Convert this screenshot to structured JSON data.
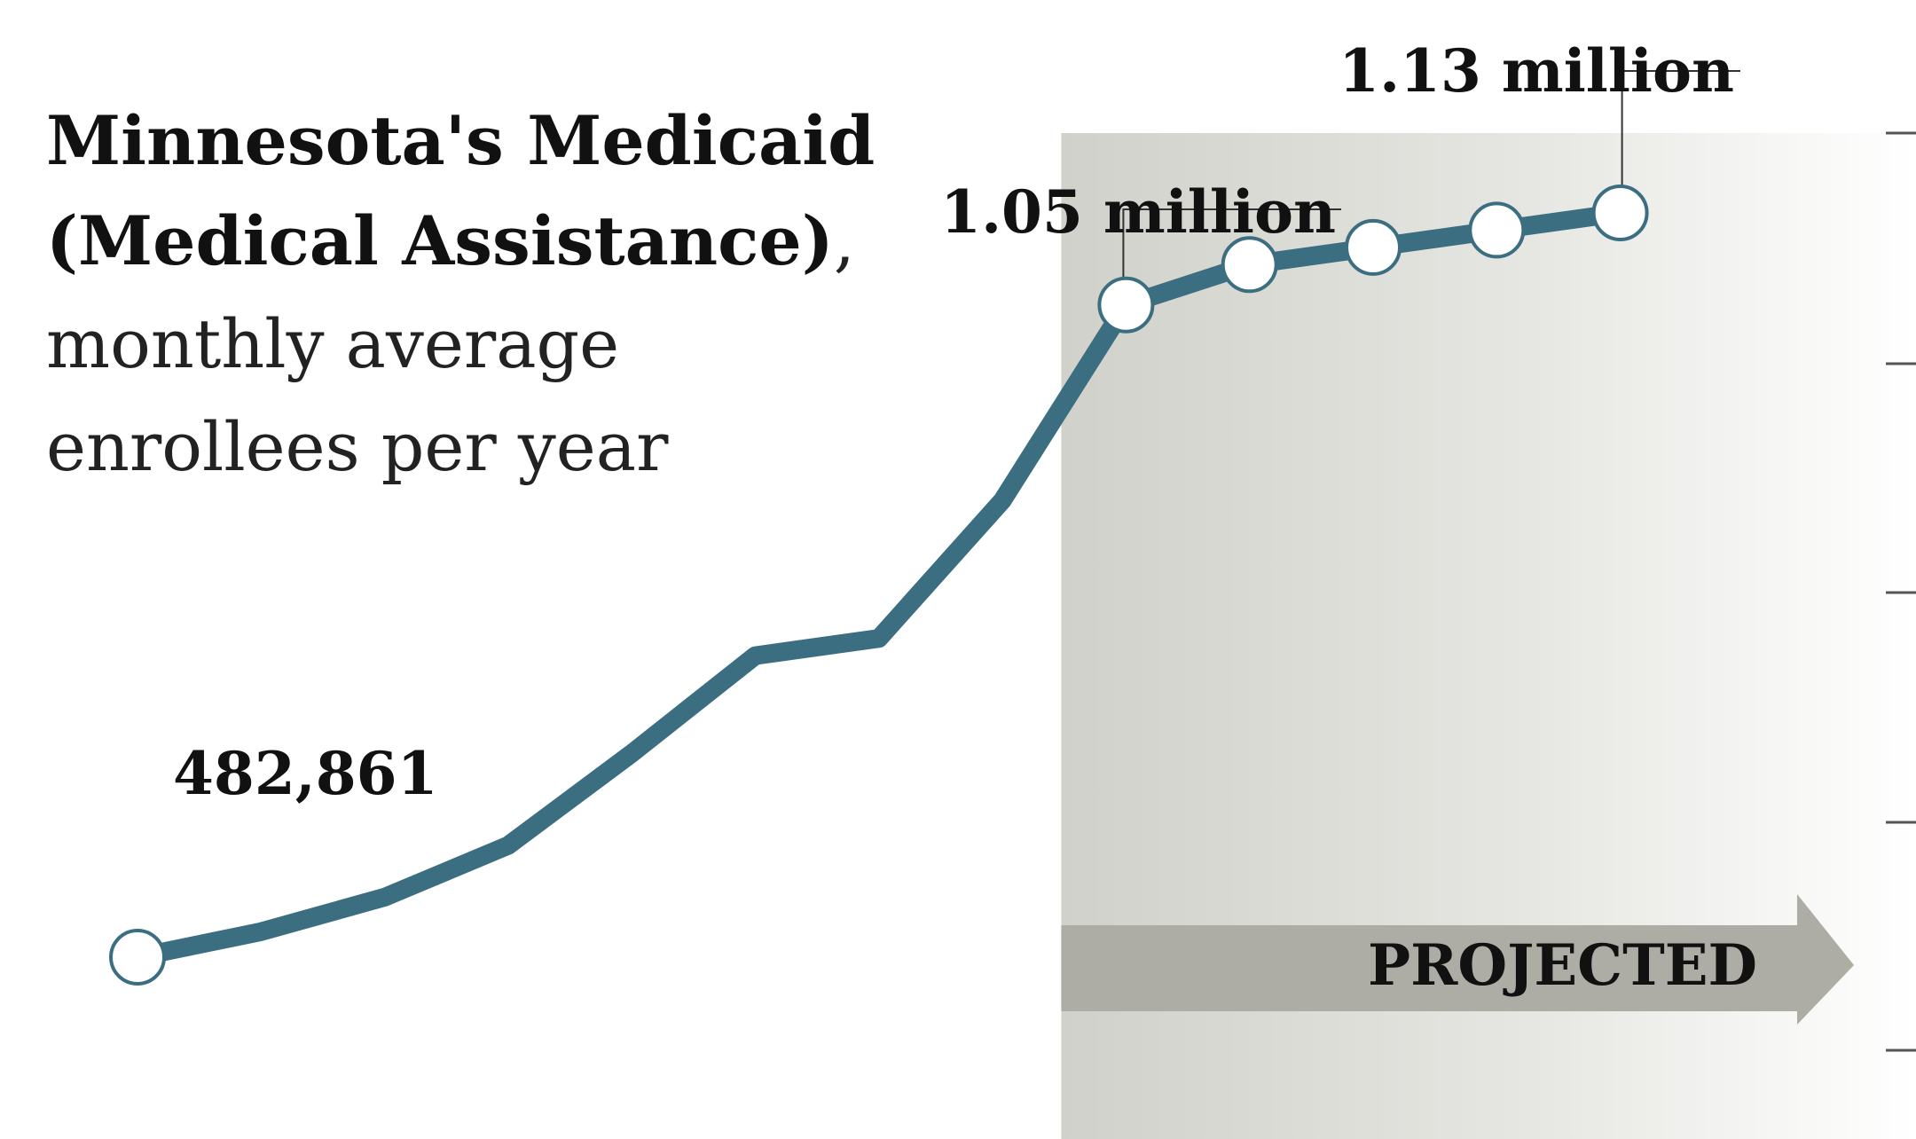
{
  "chart_data": {
    "type": "line",
    "title_lines": [
      "Minnesota's Medicaid",
      "(Medical Assistance)",
      "monthly average",
      "enrollees per year"
    ],
    "title_punct": ",",
    "series": [
      {
        "values": [
          482861,
          505000,
          535000,
          580000,
          660000,
          745000,
          760000,
          880000,
          1050000,
          1085000,
          1100000,
          1115000,
          1130000
        ],
        "projected_from_index": 8
      }
    ],
    "data_labels": [
      {
        "index": 0,
        "text": "482,861"
      },
      {
        "index": 8,
        "text": "1.05 million"
      },
      {
        "index": 12,
        "text": "1.13 million"
      }
    ],
    "annotation": "PROJECTED",
    "colors": {
      "line": "#3b6e80",
      "marker_fill": "#ffffff",
      "projected_shade": "#d4d4cf",
      "arrow": "#adada6"
    }
  }
}
